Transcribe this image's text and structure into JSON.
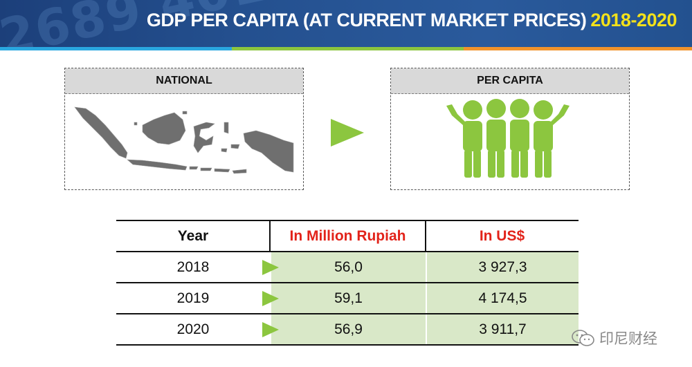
{
  "header": {
    "title": "GDP PER CAPITA (AT CURRENT MARKET PRICES)",
    "years": "2018-2020",
    "decoration_digits": "2689 4019"
  },
  "colors": {
    "banner": "#24508f",
    "stripe_blue": "#2aa7e0",
    "stripe_green": "#8cc63f",
    "stripe_orange": "#f2932b",
    "accent_red": "#e2231a",
    "cell_green": "#d9e8c8",
    "people_green": "#8cc63f",
    "map_gray": "#6f6f6f"
  },
  "panels": {
    "national": {
      "label": "NATIONAL",
      "icon": "indonesia-map"
    },
    "per_capita": {
      "label": "PER CAPITA",
      "icon": "people-group"
    }
  },
  "table": {
    "headers": [
      "Year",
      "In Million Rupiah",
      "In US$"
    ],
    "rows": [
      [
        "2018",
        "56,0",
        "3 927,3"
      ],
      [
        "2019",
        "59,1",
        "4 174,5"
      ],
      [
        "2020",
        "56,9",
        "3 911,7"
      ]
    ]
  },
  "watermark": {
    "text": "印尼财经",
    "icon": "wechat-icon"
  }
}
